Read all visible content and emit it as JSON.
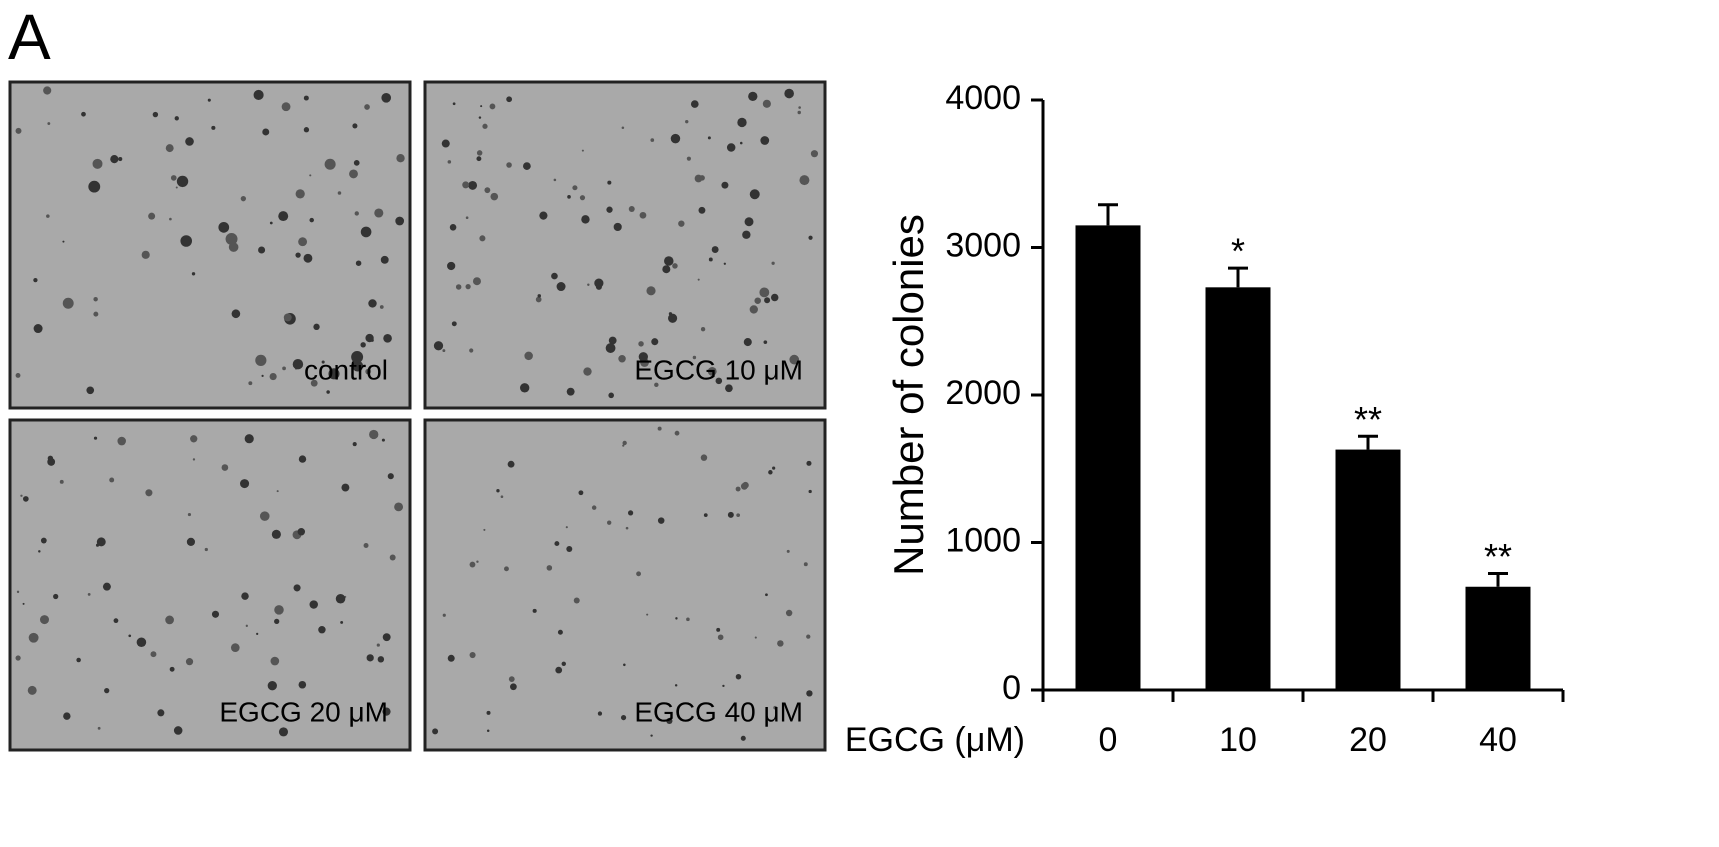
{
  "panel_label": "A",
  "images": [
    {
      "label": "control"
    },
    {
      "label": "EGCG 10 μM"
    },
    {
      "label": "EGCG 20 μM"
    },
    {
      "label": "EGCG 40 μM"
    }
  ],
  "chart_data": {
    "type": "bar",
    "ylabel": "Number of colonies",
    "xlabel": "EGCG (μM)",
    "categories": [
      "0",
      "10",
      "20",
      "40"
    ],
    "values": [
      3150,
      2730,
      1630,
      700
    ],
    "errors": [
      140,
      130,
      90,
      90
    ],
    "significance": [
      null,
      "*",
      "**",
      "**"
    ],
    "color": "#000000",
    "ylim": [
      0,
      4000
    ],
    "yticks": [
      0,
      1000,
      2000,
      3000,
      4000
    ],
    "grid": false
  }
}
